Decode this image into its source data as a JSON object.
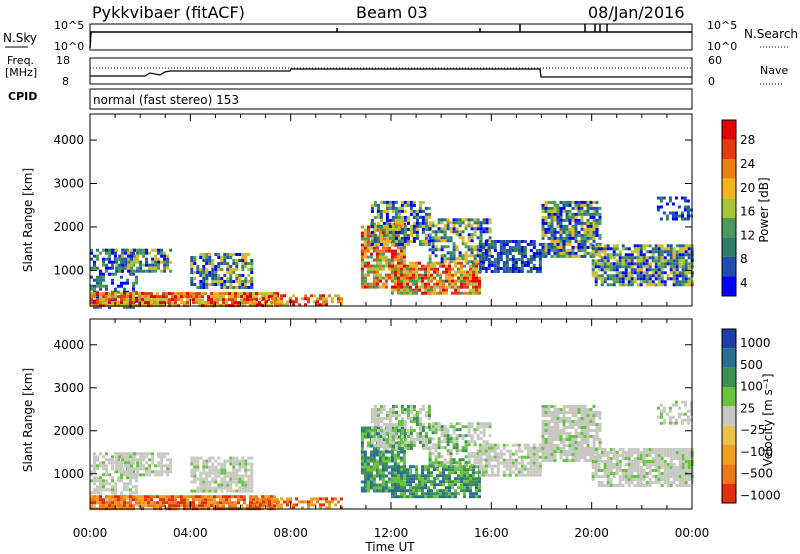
{
  "header": {
    "station": "Pykkvibaer (fitACF)",
    "beam": "Beam 03",
    "date": "08/Jan/2016"
  },
  "panels": {
    "nsky_label": "N.Sky",
    "nsearch_label": "N.Search",
    "freq_label_1": "Freq.",
    "freq_label_2": "[MHz]",
    "nave_label": "Nave",
    "cpid_label": "CPID",
    "cpid_text": "normal (fast stereo) 153",
    "noise_ticks_left": [
      "10^5",
      "10^0"
    ],
    "noise_ticks_right": [
      "10^5",
      "10^0"
    ],
    "freq_ticks": [
      "18",
      "8"
    ],
    "nave_ticks": [
      "60",
      "0"
    ]
  },
  "colors": {
    "power": [
      "#0000ff",
      "#1f4eae",
      "#2d7d66",
      "#4c9a5a",
      "#a9c637",
      "#f2b21d",
      "#f07d12",
      "#e63b10",
      "#e60000"
    ],
    "velocity_pos": [
      "#1d3ea8",
      "#2a6f90",
      "#3d8f54",
      "#67c23c"
    ],
    "velocity_neutral": "#c8c8c3",
    "velocity_neg": [
      "#e8c24a",
      "#f0a020",
      "#f07818",
      "#e03010"
    ]
  },
  "chart_data": [
    {
      "type": "heatmap",
      "name": "power",
      "ylabel": "Slant Range [km]",
      "xlabel": "Time UT",
      "x_ticks": [
        "00:00",
        "04:00",
        "08:00",
        "12:00",
        "16:00",
        "20:00",
        "00:00"
      ],
      "x_range_hours": [
        0,
        24
      ],
      "y_ticks": [
        1000,
        2000,
        3000,
        4000
      ],
      "y_range_km": [
        180,
        4600
      ],
      "colorbar_label": "Power [dB]",
      "colorbar_ticks": [
        "28",
        "24",
        "20",
        "16",
        "12",
        "8",
        "4"
      ],
      "colorbar_range": [
        0,
        30
      ]
    },
    {
      "type": "heatmap",
      "name": "velocity",
      "ylabel": "Slant Range [km]",
      "xlabel": "Time UT",
      "x_ticks": [
        "00:00",
        "04:00",
        "08:00",
        "12:00",
        "16:00",
        "20:00",
        "00:00"
      ],
      "x_range_hours": [
        0,
        24
      ],
      "y_ticks": [
        1000,
        2000,
        3000,
        4000
      ],
      "y_range_km": [
        180,
        4600
      ],
      "colorbar_label": "Velocity [m s⁻¹]",
      "colorbar_ticks": [
        "1000",
        "500",
        "100",
        "25",
        "−25",
        "−100",
        "−500",
        "−1000"
      ],
      "colorbar_range": [
        -1000,
        1000
      ]
    }
  ]
}
